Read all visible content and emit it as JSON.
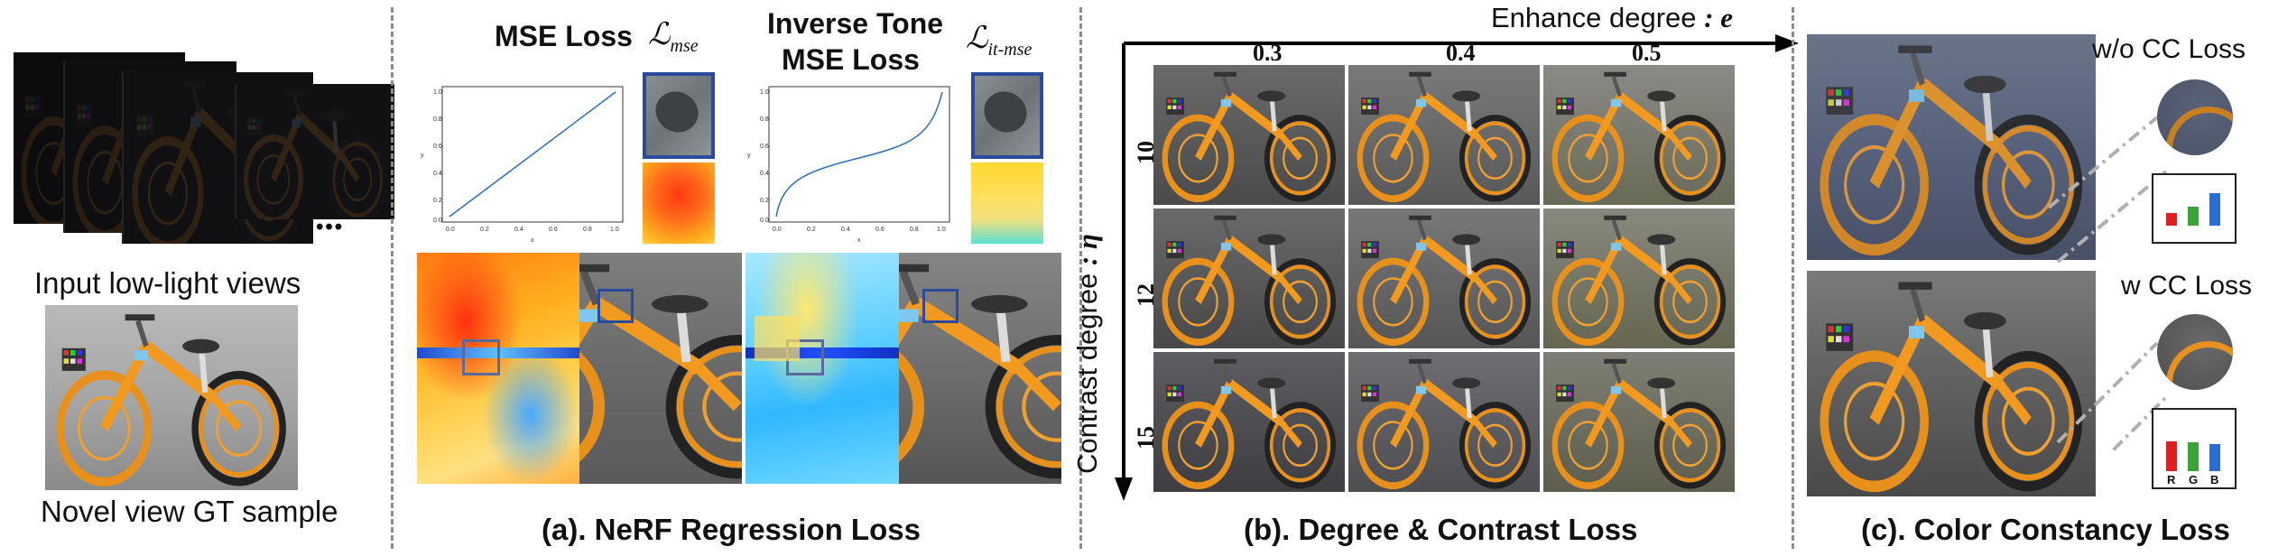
{
  "left_panel": {
    "input_caption": "Input low-light views",
    "gt_caption": "Novel view GT sample",
    "ellipsis": "•••"
  },
  "panel_a": {
    "mse_title": "MSE Loss",
    "mse_symbol": "ℒ",
    "mse_sub": "mse",
    "itmse_title_1": "Inverse Tone",
    "itmse_title_2": "MSE Loss",
    "itmse_symbol": "ℒ",
    "itmse_sub": "it-mse",
    "plot_x_label": "x",
    "plot_y_label": "y",
    "plot_ticks_y": [
      "1.0",
      "0.8",
      "0.6",
      "0.4",
      "0.2",
      "0.0"
    ],
    "plot_ticks_x": [
      "0.0",
      "0.2",
      "0.4",
      "0.6",
      "0.8",
      "1.0"
    ],
    "caption": "(a). NeRF Regression Loss"
  },
  "panel_b": {
    "x_axis_label": "Enhance degree",
    "x_axis_symbol": ": e",
    "y_axis_label": "Contrast degree",
    "y_axis_symbol": ": η",
    "col_labels": [
      "0.3",
      "0.4",
      "0.5"
    ],
    "row_labels": [
      "10",
      "12",
      "15"
    ],
    "caption": "(b). Degree & Contrast Loss"
  },
  "panel_c": {
    "wo_label": "w/o CC Loss",
    "w_label": "w CC Loss",
    "bar_labels": [
      "R",
      "G",
      "B"
    ],
    "wo_bars": [
      0.28,
      0.42,
      0.72
    ],
    "w_bars": [
      0.6,
      0.58,
      0.55
    ],
    "bar_colors": [
      "#e02020",
      "#3aa33a",
      "#2a6ccf"
    ],
    "caption": "(c). Color Constancy Loss"
  }
}
